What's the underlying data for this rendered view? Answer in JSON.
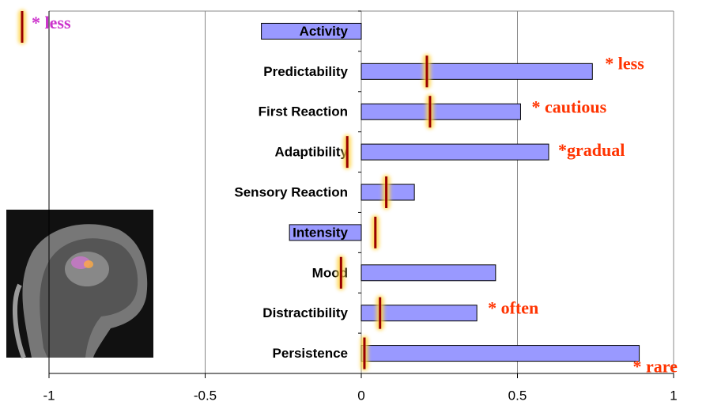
{
  "chart_data": {
    "type": "bar",
    "orientation": "horizontal",
    "categories": [
      "Activity",
      "Predictability",
      "First Reaction",
      "Adaptibility",
      "Sensory Reaction",
      "Intensity",
      "Mood",
      "Distractibility",
      "Persistence"
    ],
    "values": [
      -0.32,
      0.74,
      0.51,
      0.6,
      0.17,
      -0.23,
      0.43,
      0.37,
      0.89
    ],
    "color": "#9999ff",
    "markers": {
      "name": "* less",
      "color": "#990000",
      "values": [
        null,
        0.21,
        0.22,
        -0.045,
        0.08,
        0.045,
        -0.065,
        0.06,
        0.01
      ]
    },
    "annotations": [
      {
        "category": "Predictability",
        "text": "* less"
      },
      {
        "category": "First Reaction",
        "text": "* cautious"
      },
      {
        "category": "Adaptibility",
        "text": "*gradual"
      },
      {
        "category": "Distractibility",
        "text": "* often"
      },
      {
        "category": "Persistence",
        "text": "* rare"
      }
    ],
    "xlim": [
      -1,
      1
    ],
    "xticks": [
      -1,
      -0.5,
      0,
      0.5,
      1
    ],
    "grid": true
  }
}
